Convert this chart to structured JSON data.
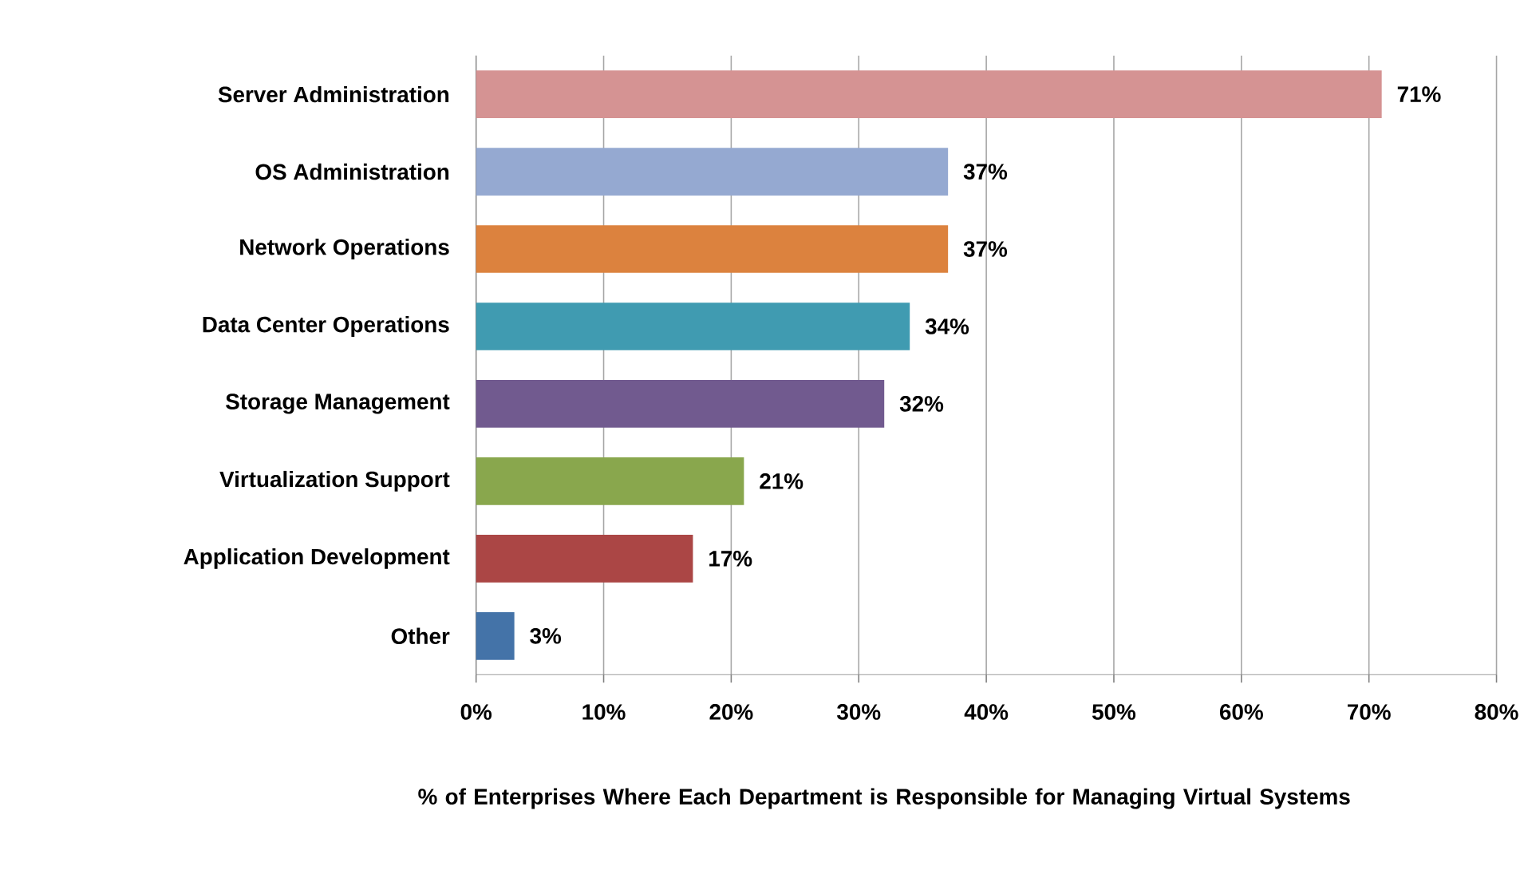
{
  "chart_data": {
    "type": "bar",
    "orientation": "horizontal",
    "xlabel": "% of Enterprises Where Each Department is Responsible for Managing Virtual Systems",
    "categories": [
      "Server Administration",
      "OS Administration",
      "Network Operations",
      "Data Center Operations",
      "Storage  Management",
      "Virtualization Support",
      "Application Development",
      "Other"
    ],
    "values": [
      71,
      37,
      37,
      34,
      32,
      21,
      17,
      3
    ],
    "value_labels": [
      "71%",
      "37%",
      "37%",
      "34%",
      "32%",
      "21%",
      "17%",
      "3%"
    ],
    "colors": [
      "#d59393",
      "#95a9d1",
      "#dc823e",
      "#409bb1",
      "#715a8f",
      "#89a74d",
      "#ab4645",
      "#4473a8"
    ],
    "xlim": [
      0,
      80
    ],
    "xticks": [
      {
        "value": 0,
        "label": "0%"
      },
      {
        "value": 10,
        "label": "10%"
      },
      {
        "value": 20,
        "label": "20%"
      },
      {
        "value": 30,
        "label": "30%"
      },
      {
        "value": 40,
        "label": "40%"
      },
      {
        "value": 50,
        "label": "50%"
      },
      {
        "value": 60,
        "label": "60%"
      },
      {
        "value": 70,
        "label": "70%"
      },
      {
        "value": 80,
        "label": "80%"
      }
    ],
    "grid": "x"
  }
}
